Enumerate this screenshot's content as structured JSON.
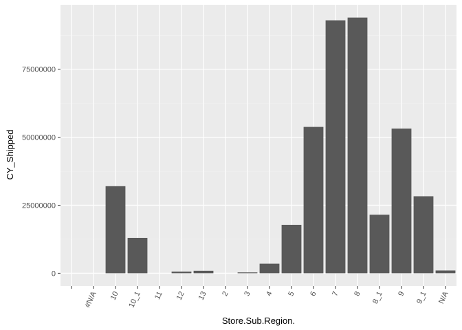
{
  "chart_data": {
    "type": "bar",
    "xlabel": "Store.Sub.Region.",
    "ylabel": "CY_Shipped",
    "categories": [
      "",
      "#N/A",
      "10",
      "10_1",
      "11",
      "12",
      "13",
      "2",
      "3",
      "4",
      "5",
      "6",
      "7",
      "8",
      "8_1",
      "9",
      "9_1",
      "N/A"
    ],
    "values": [
      0,
      0,
      32000000,
      13000000,
      0,
      600000,
      900000,
      0,
      300000,
      3500000,
      17800000,
      53800000,
      93000000,
      94000000,
      21500000,
      53200000,
      28300000,
      1000000
    ],
    "ylim": [
      -4700000,
      98700000
    ],
    "yticks": [
      0,
      25000000,
      50000000,
      75000000
    ],
    "ytick_labels": [
      "0",
      "25000000",
      "50000000",
      "75000000"
    ],
    "grid": true,
    "colors": {
      "bar": "#595959",
      "panel": "#ebebeb",
      "grid_major": "#ffffff",
      "grid_minor": "#f2f2f2"
    }
  }
}
